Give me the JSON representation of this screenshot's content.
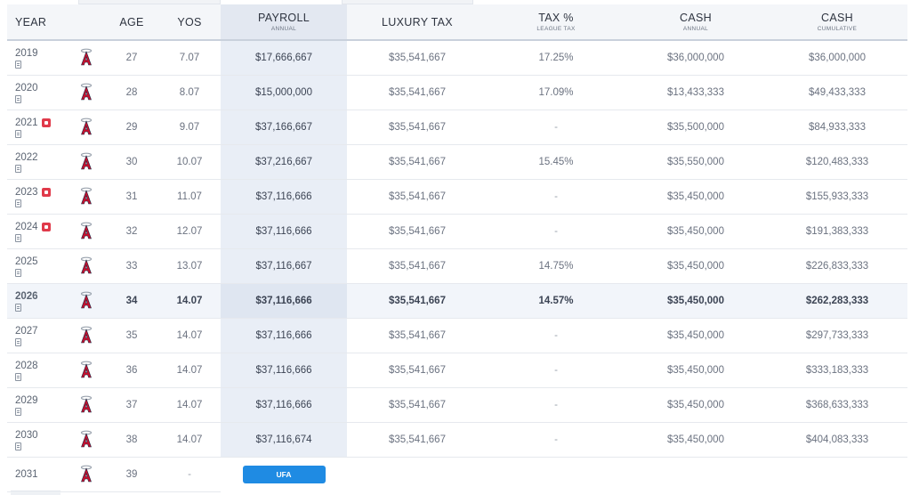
{
  "columns": {
    "year": "YEAR",
    "age": "AGE",
    "yos": "YOS",
    "payroll": "PAYROLL",
    "payroll_sub": "ANNUAL",
    "luxury_tax": "LUXURY TAX",
    "tax_pct": "TAX %",
    "tax_pct_sub": "LEAGUE TAX",
    "cash": "CASH",
    "cash_sub": "ANNUAL",
    "cash_cum": "CASH",
    "cash_cum_sub": "CUMULATIVE"
  },
  "team_logo": "angels-logo-icon",
  "accent_colors": {
    "logo_red": "#c8102e",
    "option_badge": "#e03a4a",
    "ufa_button": "#1f8be3"
  },
  "rows": [
    {
      "year": "2019",
      "option": false,
      "age": "27",
      "yos": "7.07",
      "payroll": "$17,666,667",
      "luxury_tax": "$35,541,667",
      "tax_pct": "17.25%",
      "cash": "$36,000,000",
      "cash_cum": "$36,000,000",
      "current": false
    },
    {
      "year": "2020",
      "option": false,
      "age": "28",
      "yos": "8.07",
      "payroll": "$15,000,000",
      "luxury_tax": "$35,541,667",
      "tax_pct": "17.09%",
      "cash": "$13,433,333",
      "cash_cum": "$49,433,333",
      "current": false
    },
    {
      "year": "2021",
      "option": true,
      "age": "29",
      "yos": "9.07",
      "payroll": "$37,166,667",
      "luxury_tax": "$35,541,667",
      "tax_pct": "-",
      "cash": "$35,500,000",
      "cash_cum": "$84,933,333",
      "current": false
    },
    {
      "year": "2022",
      "option": false,
      "age": "30",
      "yos": "10.07",
      "payroll": "$37,216,667",
      "luxury_tax": "$35,541,667",
      "tax_pct": "15.45%",
      "cash": "$35,550,000",
      "cash_cum": "$120,483,333",
      "current": false
    },
    {
      "year": "2023",
      "option": true,
      "age": "31",
      "yos": "11.07",
      "payroll": "$37,116,666",
      "luxury_tax": "$35,541,667",
      "tax_pct": "-",
      "cash": "$35,450,000",
      "cash_cum": "$155,933,333",
      "current": false
    },
    {
      "year": "2024",
      "option": true,
      "age": "32",
      "yos": "12.07",
      "payroll": "$37,116,666",
      "luxury_tax": "$35,541,667",
      "tax_pct": "-",
      "cash": "$35,450,000",
      "cash_cum": "$191,383,333",
      "current": false
    },
    {
      "year": "2025",
      "option": false,
      "age": "33",
      "yos": "13.07",
      "payroll": "$37,116,667",
      "luxury_tax": "$35,541,667",
      "tax_pct": "14.75%",
      "cash": "$35,450,000",
      "cash_cum": "$226,833,333",
      "current": false
    },
    {
      "year": "2026",
      "option": false,
      "age": "34",
      "yos": "14.07",
      "payroll": "$37,116,666",
      "luxury_tax": "$35,541,667",
      "tax_pct": "14.57%",
      "cash": "$35,450,000",
      "cash_cum": "$262,283,333",
      "current": true
    },
    {
      "year": "2027",
      "option": false,
      "age": "35",
      "yos": "14.07",
      "payroll": "$37,116,666",
      "luxury_tax": "$35,541,667",
      "tax_pct": "-",
      "cash": "$35,450,000",
      "cash_cum": "$297,733,333",
      "current": false
    },
    {
      "year": "2028",
      "option": false,
      "age": "36",
      "yos": "14.07",
      "payroll": "$37,116,666",
      "luxury_tax": "$35,541,667",
      "tax_pct": "-",
      "cash": "$35,450,000",
      "cash_cum": "$333,183,333",
      "current": false
    },
    {
      "year": "2029",
      "option": false,
      "age": "37",
      "yos": "14.07",
      "payroll": "$37,116,666",
      "luxury_tax": "$35,541,667",
      "tax_pct": "-",
      "cash": "$35,450,000",
      "cash_cum": "$368,633,333",
      "current": false
    },
    {
      "year": "2030",
      "option": false,
      "age": "38",
      "yos": "14.07",
      "payroll": "$37,116,674",
      "luxury_tax": "$35,541,667",
      "tax_pct": "-",
      "cash": "$35,450,000",
      "cash_cum": "$404,083,333",
      "current": false
    }
  ],
  "final_row": {
    "year": "2031",
    "age": "39",
    "yos": "-",
    "status": "UFA"
  }
}
